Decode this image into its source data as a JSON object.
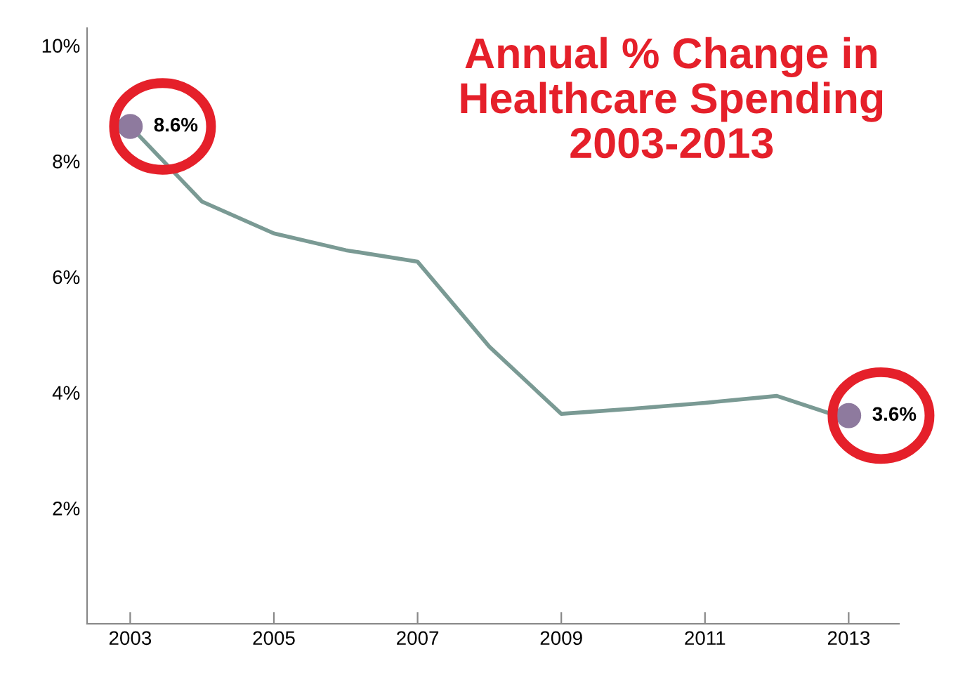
{
  "chart_data": {
    "type": "line",
    "title": "Annual % Change in\nHealthcare Spending\n2003-2013",
    "x": [
      2003,
      2004,
      2005,
      2006,
      2007,
      2008,
      2009,
      2010,
      2011,
      2012,
      2013
    ],
    "series": [
      {
        "color": "#7a9a94",
        "marker": "none",
        "values": [
          8.6,
          7.3,
          6.75,
          6.46,
          6.26,
          4.79,
          3.63,
          3.72,
          3.82,
          3.94,
          3.53
        ]
      },
      {
        "type": "scatter",
        "marker": "circle",
        "color": "#8e7a9e",
        "x": [
          2003,
          2013
        ],
        "values": [
          8.6,
          3.6
        ],
        "value_labels": [
          "8.6%",
          "3.6%"
        ]
      }
    ],
    "xlim": [
      2002.4,
      2013.7
    ],
    "xticks": [
      2003,
      2005,
      2007,
      2009,
      2011,
      2013
    ],
    "ylim": [
      0,
      10.3
    ],
    "yticks": [
      {
        "value": 2,
        "label": "2%"
      },
      {
        "value": 4,
        "label": "4%"
      },
      {
        "value": 6,
        "label": "6%"
      },
      {
        "value": 8,
        "label": "8%"
      },
      {
        "value": 10,
        "label": "10%"
      }
    ],
    "grid": false,
    "line_style": "solid"
  }
}
